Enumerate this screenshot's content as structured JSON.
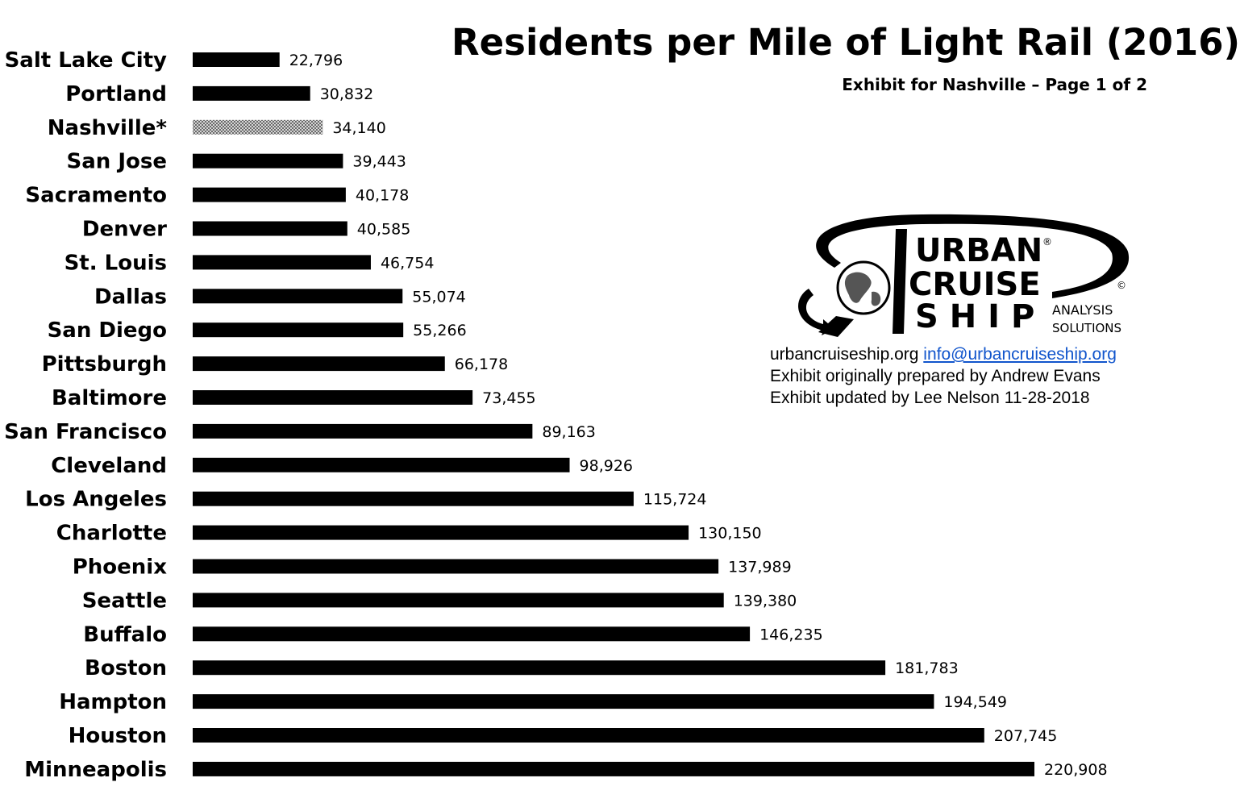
{
  "chart_data": {
    "type": "bar",
    "orientation": "horizontal",
    "title": "Residents per Mile of Light Rail (2016)",
    "subtitle": "Exhibit for Nashville – Page 1 of 2",
    "categories": [
      "Salt Lake City",
      "Portland",
      "Nashville*",
      "San Jose",
      "Sacramento",
      "Denver",
      "St. Louis",
      "Dallas",
      "San Diego",
      "Pittsburgh",
      "Baltimore",
      "San Francisco",
      "Cleveland",
      "Los Angeles",
      "Charlotte",
      "Phoenix",
      "Seattle",
      "Buffalo",
      "Boston",
      "Hampton",
      "Houston",
      "Minneapolis"
    ],
    "values": [
      22796,
      30832,
      34140,
      39443,
      40178,
      40585,
      46754,
      55074,
      55266,
      66178,
      73455,
      89163,
      98926,
      115724,
      130150,
      137989,
      139380,
      146235,
      181783,
      194549,
      207745,
      220908
    ],
    "value_labels": [
      "22,796",
      "30,832",
      "34,140",
      "39,443",
      "40,178",
      "40,585",
      "46,754",
      "55,074",
      "55,266",
      "66,178",
      "73,455",
      "89,163",
      "98,926",
      "115,724",
      "130,150",
      "137,989",
      "139,380",
      "146,235",
      "181,783",
      "194,549",
      "207,745",
      "220,908"
    ],
    "highlight_category": "Nashville*",
    "xlabel": "",
    "ylabel": "",
    "grid": false,
    "colors": {
      "bar": "#000000",
      "highlight": "#9a9a9a"
    }
  },
  "logo": {
    "line1": "URBAN",
    "line2": "CRUISE",
    "line3": "S H I P",
    "analysis": "ANALYSIS",
    "solutions": "SOLUTIONS",
    "registered": "®",
    "copyright": "©",
    "icon": "globe-swoosh-icon"
  },
  "info": {
    "site": "urbancruiseship.org",
    "email": "info@urbancruiseship.org",
    "line2": "Exhibit originally prepared by Andrew Evans",
    "line3": "Exhibit updated by Lee Nelson 11-28-2018"
  }
}
